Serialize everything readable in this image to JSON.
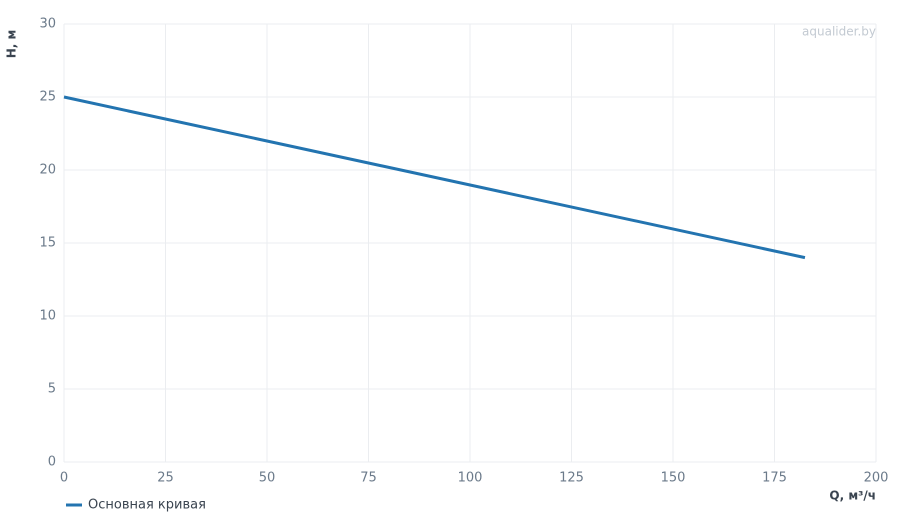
{
  "chart_data": {
    "type": "line",
    "x": [
      0,
      182.5
    ],
    "series": [
      {
        "name": "Основная кривая",
        "color": "#2374b0",
        "values": [
          25,
          14
        ]
      }
    ],
    "xlim": [
      0,
      200
    ],
    "xticks": [
      0,
      25,
      50,
      75,
      100,
      125,
      150,
      175,
      200
    ],
    "ylim": [
      0,
      30
    ],
    "yticks": [
      0,
      5,
      10,
      15,
      20,
      25,
      30
    ],
    "xlabel": "Q, м³/ч",
    "ylabel": "H, м",
    "watermark": "aqualider.by",
    "grid": true,
    "legend": "bottom-left"
  }
}
